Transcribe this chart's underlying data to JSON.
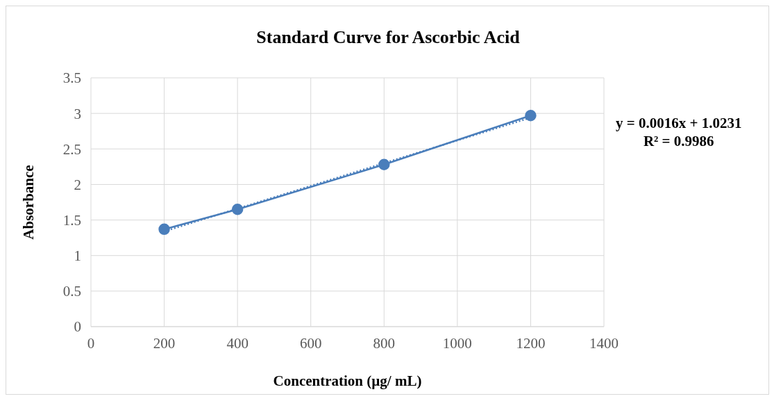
{
  "chart_data": {
    "type": "line",
    "title": "Standard Curve for Ascorbic Acid",
    "xlabel": "Concentration (µg/ mL)",
    "ylabel": "Absorbance",
    "x": [
      200,
      400,
      800,
      1200
    ],
    "series": [
      {
        "color": "#4a7ebb",
        "values": [
          1.37,
          1.65,
          2.28,
          2.97
        ],
        "marker": "circle",
        "line_style": "solid"
      },
      {
        "type": "line",
        "color": "#4a7ebb",
        "x": [
          200,
          1200
        ],
        "values": [
          1.34,
          2.94
        ],
        "marker": "none",
        "line_style": "dotted"
      }
    ],
    "xlim": [
      0,
      1400
    ],
    "xticks": [
      0,
      200,
      400,
      600,
      800,
      1000,
      1200,
      1400
    ],
    "ylim": [
      0,
      3.5
    ],
    "yticks": [
      0,
      0.5,
      1,
      1.5,
      2,
      2.5,
      3,
      3.5
    ],
    "grid": true,
    "annotations": [
      "y = 0.0016x + 1.0231",
      "R² = 0.9986"
    ]
  }
}
